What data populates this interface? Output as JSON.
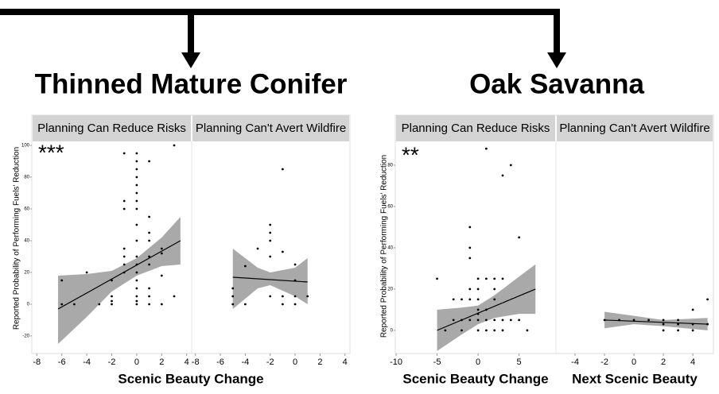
{
  "groups": [
    {
      "title": "Thinned Mature Conifer",
      "y_label": "Reported Probability of Performing Fuels' Reduction",
      "x_label": "Scenic Beauty Change",
      "significance": "***"
    },
    {
      "title": "Oak Savanna",
      "y_label": "Reported Probability of Performing Fuels' Reduction",
      "significance": "**"
    }
  ],
  "chart_data": [
    {
      "type": "scatter",
      "title": "Planning Can Reduce Risks",
      "color": "#000000",
      "xlim": [
        -8.4,
        4.4
      ],
      "ylim": [
        -31,
        102.5
      ],
      "xticks": [
        -8,
        -6,
        -4,
        -2,
        0,
        2,
        4
      ],
      "yticks": [
        -20,
        0,
        20,
        40,
        60,
        80,
        100
      ],
      "x": [
        -6,
        -6,
        -5,
        -4,
        -3,
        -2,
        -2,
        -2,
        -2,
        -1,
        -1,
        -1,
        -1,
        -1,
        -1,
        -1,
        0,
        0,
        0,
        0,
        0,
        0,
        0,
        0,
        0,
        0,
        0,
        0,
        0,
        0,
        0,
        0,
        0,
        0,
        1,
        1,
        1,
        1,
        1,
        1,
        1,
        1,
        2,
        2,
        2,
        2,
        3,
        3,
        1
      ],
      "values": [
        15,
        0,
        0,
        20,
        0,
        0,
        2,
        5,
        15,
        60,
        65,
        95,
        30,
        35,
        25,
        20,
        95,
        90,
        85,
        80,
        75,
        70,
        65,
        60,
        50,
        40,
        30,
        25,
        20,
        15,
        10,
        5,
        0,
        2,
        90,
        55,
        40,
        30,
        25,
        10,
        0,
        5,
        35,
        32,
        18,
        0,
        100,
        5,
        45
      ],
      "fit": {
        "x": [
          -6.3,
          3.5
        ],
        "values": [
          -3,
          40
        ]
      },
      "band": {
        "x": [
          -6.3,
          -4,
          -2,
          0,
          2,
          3.5
        ],
        "lower": [
          -25,
          -8,
          8,
          18,
          24,
          25
        ],
        "upper": [
          18,
          19,
          21,
          29,
          42,
          55
        ]
      }
    },
    {
      "type": "scatter",
      "title": "Planning Can't Avert Wildfire",
      "color": "#000000",
      "xlim": [
        -8.3,
        4.4
      ],
      "ylim": [
        -31,
        102.5
      ],
      "xticks": [
        -8,
        -6,
        -4,
        -2,
        0,
        2,
        4
      ],
      "x": [
        -5,
        -5,
        -5,
        -4,
        -4,
        -3,
        -2,
        -2,
        -2,
        -2,
        -2,
        -1,
        -1,
        -1,
        -1,
        0,
        0,
        0,
        0,
        1
      ],
      "values": [
        0,
        5,
        10,
        24,
        0,
        35,
        50,
        45,
        40,
        5,
        30,
        85,
        5,
        0,
        33,
        25,
        15,
        5,
        0,
        5
      ],
      "fit": {
        "x": [
          -5,
          1
        ],
        "values": [
          17,
          14
        ]
      },
      "band": {
        "x": [
          -5,
          -3,
          -2,
          0,
          1
        ],
        "lower": [
          -3,
          10,
          12,
          5,
          0
        ],
        "upper": [
          35,
          23,
          20,
          23,
          29
        ]
      }
    },
    {
      "type": "scatter",
      "title": "Planning Can Reduce Risks",
      "color": "#000000",
      "x_label": "Scenic Beauty Change",
      "xlim": [
        -10.1,
        9.5
      ],
      "ylim": [
        -11.2,
        91.5
      ],
      "xticks": [
        -10,
        -5,
        0,
        5
      ],
      "yticks": [
        0,
        20,
        40,
        60,
        80
      ],
      "x": [
        -5,
        -4,
        -3,
        -3,
        -2,
        -2,
        -1,
        -1,
        -1,
        -1,
        -1,
        -1,
        0,
        0,
        0,
        0,
        0,
        0,
        0,
        1,
        1,
        1,
        1,
        2,
        2,
        2,
        2,
        2,
        3,
        3,
        3,
        3,
        4,
        4,
        5,
        5,
        6,
        -2,
        1
      ],
      "values": [
        25,
        0,
        15,
        5,
        15,
        5,
        20,
        40,
        35,
        50,
        5,
        15,
        25,
        20,
        15,
        10,
        5,
        0,
        8,
        88,
        25,
        5,
        0,
        20,
        25,
        0,
        15,
        5,
        75,
        25,
        5,
        0,
        80,
        5,
        45,
        5,
        0,
        0,
        10
      ],
      "fit": {
        "x": [
          -5,
          7
        ],
        "values": [
          0,
          20
        ]
      },
      "band": {
        "x": [
          -5,
          -2,
          0,
          2,
          5,
          7
        ],
        "lower": [
          -10,
          -2,
          3,
          6,
          8,
          8
        ],
        "upper": [
          10,
          11,
          12,
          17,
          26,
          32
        ]
      }
    },
    {
      "type": "scatter",
      "title": "Planning Can't Avert Wildfire",
      "color": "#000000",
      "x_label": "Next Scenic Beauty",
      "xlim": [
        -5.3,
        5.4
      ],
      "ylim": [
        -11.2,
        91.5
      ],
      "xticks": [
        -4,
        -2,
        0,
        2,
        4
      ],
      "x": [
        -2,
        0,
        1,
        2,
        2,
        2,
        3,
        3,
        4,
        4,
        4,
        5,
        5,
        3,
        -1
      ],
      "values": [
        5,
        5,
        5,
        0,
        3,
        5,
        0,
        5,
        10,
        3,
        0,
        15,
        3,
        3,
        5
      ],
      "fit": {
        "x": [
          -2,
          5
        ],
        "values": [
          5,
          3
        ]
      },
      "band": {
        "x": [
          -2,
          0,
          2,
          5
        ],
        "lower": [
          1,
          3,
          2,
          0
        ],
        "upper": [
          9,
          7,
          5,
          6
        ]
      }
    }
  ]
}
